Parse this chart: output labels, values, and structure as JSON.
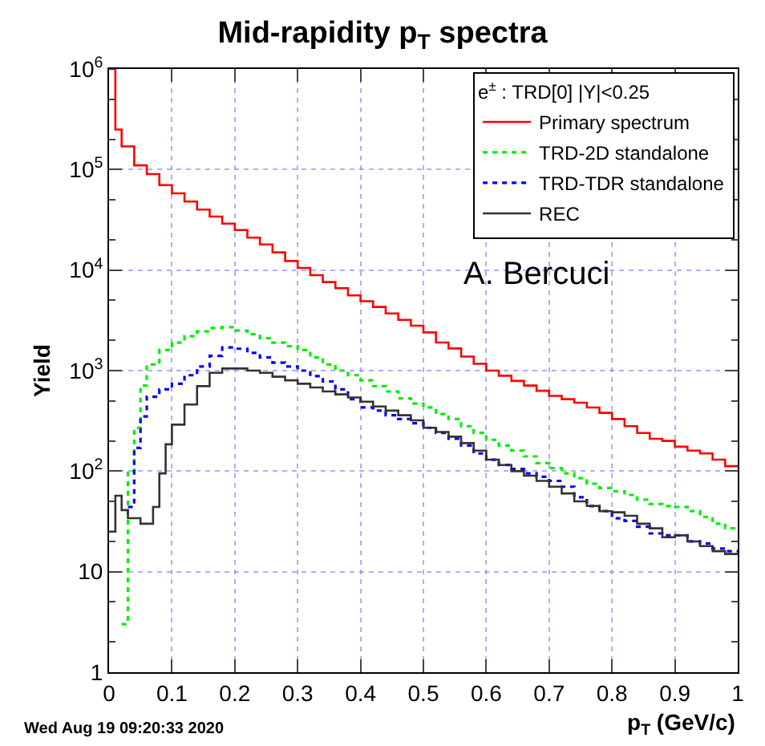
{
  "chart_data": {
    "type": "step",
    "title": "Mid-rapidity p$_{T}$ spectra",
    "xlabel": "p$_{T}$ (GeV/c)",
    "ylabel": "Yield",
    "legend_title": "e$^{±}$ : TRD[0] |Y|<0.25",
    "annotations": [
      "A. Bercuci",
      "Wed Aug 19 09:20:33 2020"
    ],
    "xlim": [
      0,
      1
    ],
    "xticks": [
      0,
      0.1,
      0.2,
      0.3,
      0.4,
      0.5,
      0.6,
      0.7,
      0.8,
      0.9,
      1
    ],
    "ylim": [
      1,
      1000000
    ],
    "yticks": [
      1,
      10,
      {
        "value": 100,
        "label": "10$^{2}$"
      },
      {
        "value": 1000,
        "label": "10$^{3}$"
      },
      {
        "value": 10000,
        "label": "10$^{4}$"
      },
      {
        "value": 100000,
        "label": "10$^{5}$"
      },
      {
        "value": 1000000,
        "label": "10$^{6}$"
      }
    ],
    "log": "y",
    "grid": true,
    "legend": "top right",
    "marker": "none",
    "series": [
      {
        "name": "Primary spectrum",
        "color": "#ff0000",
        "line_style": "solid",
        "x": [
          0,
          0.01,
          0.02,
          0.04,
          0.06,
          0.08,
          0.1,
          0.12,
          0.14,
          0.16,
          0.18,
          0.2,
          0.22,
          0.24,
          0.26,
          0.28,
          0.3,
          0.32,
          0.34,
          0.36,
          0.38,
          0.4,
          0.42,
          0.44,
          0.46,
          0.48,
          0.5,
          0.52,
          0.54,
          0.56,
          0.58,
          0.6,
          0.62,
          0.64,
          0.66,
          0.68,
          0.7,
          0.72,
          0.74,
          0.76,
          0.78,
          0.8,
          0.82,
          0.84,
          0.86,
          0.88,
          0.9,
          0.92,
          0.94,
          0.96,
          0.98,
          1
        ],
        "values": [
          1000000,
          250000,
          170000,
          110000,
          90000,
          70000,
          58000,
          48000,
          40000,
          34000,
          29000,
          25000,
          21000,
          18000,
          15000,
          12300,
          10500,
          8900,
          7600,
          6600,
          5600,
          4900,
          4300,
          3700,
          3200,
          2800,
          2400,
          1900,
          1660,
          1380,
          1170,
          1000,
          890,
          790,
          710,
          630,
          560,
          520,
          480,
          430,
          380,
          330,
          280,
          240,
          210,
          200,
          175,
          160,
          150,
          130,
          112,
          112
        ]
      },
      {
        "name": "TRD-2D standalone",
        "color": "#00ee00",
        "line_style": "dotted",
        "x": [
          0.02,
          0.03,
          0.04,
          0.05,
          0.06,
          0.08,
          0.1,
          0.12,
          0.14,
          0.16,
          0.18,
          0.2,
          0.22,
          0.24,
          0.26,
          0.28,
          0.3,
          0.32,
          0.34,
          0.36,
          0.38,
          0.4,
          0.42,
          0.44,
          0.46,
          0.48,
          0.5,
          0.52,
          0.54,
          0.56,
          0.58,
          0.6,
          0.62,
          0.64,
          0.66,
          0.68,
          0.7,
          0.72,
          0.74,
          0.76,
          0.78,
          0.8,
          0.82,
          0.84,
          0.86,
          0.88,
          0.9,
          0.92,
          0.94,
          0.96,
          0.98,
          1
        ],
        "values": [
          3,
          100,
          270,
          710,
          1150,
          1600,
          1900,
          2200,
          2450,
          2650,
          2700,
          2500,
          2300,
          2100,
          1900,
          1750,
          1600,
          1350,
          1150,
          1000,
          900,
          800,
          700,
          620,
          530,
          470,
          430,
          370,
          330,
          280,
          240,
          205,
          180,
          160,
          140,
          120,
          107,
          95,
          85,
          75,
          68,
          63,
          58,
          52,
          47,
          45,
          44,
          40,
          35,
          30,
          27,
          27
        ]
      },
      {
        "name": "TRD-TDR standalone",
        "color": "#0000ff",
        "line_style": "dotted",
        "x": [
          0.03,
          0.04,
          0.05,
          0.06,
          0.08,
          0.1,
          0.12,
          0.14,
          0.16,
          0.18,
          0.2,
          0.22,
          0.24,
          0.26,
          0.28,
          0.3,
          0.32,
          0.34,
          0.36,
          0.38,
          0.4,
          0.42,
          0.44,
          0.46,
          0.48,
          0.5,
          0.52,
          0.54,
          0.56,
          0.58,
          0.6,
          0.62,
          0.64,
          0.66,
          0.68,
          0.7,
          0.72,
          0.74,
          0.76,
          0.78,
          0.8,
          0.82,
          0.84,
          0.86,
          0.88,
          0.9,
          0.92,
          0.94,
          0.96,
          0.98,
          1
        ],
        "values": [
          44,
          170,
          350,
          550,
          650,
          740,
          900,
          1100,
          1400,
          1700,
          1650,
          1500,
          1350,
          1200,
          1100,
          1000,
          880,
          780,
          650,
          520,
          430,
          400,
          360,
          330,
          300,
          270,
          240,
          210,
          180,
          150,
          130,
          115,
          105,
          95,
          88,
          80,
          70,
          55,
          45,
          40,
          34,
          32,
          28,
          24,
          23,
          23,
          20,
          19,
          17,
          16,
          16
        ]
      },
      {
        "name": "REC",
        "color": "#333333",
        "line_style": "solid",
        "x": [
          0,
          0.01,
          0.02,
          0.03,
          0.05,
          0.06,
          0.07,
          0.08,
          0.09,
          0.1,
          0.12,
          0.14,
          0.16,
          0.18,
          0.2,
          0.22,
          0.24,
          0.26,
          0.28,
          0.3,
          0.32,
          0.34,
          0.36,
          0.38,
          0.4,
          0.42,
          0.44,
          0.46,
          0.48,
          0.5,
          0.52,
          0.54,
          0.56,
          0.58,
          0.6,
          0.62,
          0.64,
          0.66,
          0.68,
          0.7,
          0.72,
          0.74,
          0.76,
          0.78,
          0.8,
          0.82,
          0.84,
          0.86,
          0.88,
          0.9,
          0.92,
          0.94,
          0.96,
          0.98,
          1
        ],
        "values": [
          25,
          57,
          41,
          34,
          30,
          30,
          44,
          95,
          185,
          290,
          460,
          700,
          950,
          1050,
          1050,
          1000,
          950,
          870,
          800,
          740,
          680,
          620,
          580,
          540,
          490,
          440,
          400,
          360,
          320,
          270,
          245,
          220,
          190,
          160,
          130,
          115,
          100,
          90,
          80,
          70,
          60,
          50,
          45,
          40,
          39,
          36,
          30,
          27,
          22,
          23,
          20,
          18,
          16,
          15,
          15
        ]
      }
    ]
  }
}
